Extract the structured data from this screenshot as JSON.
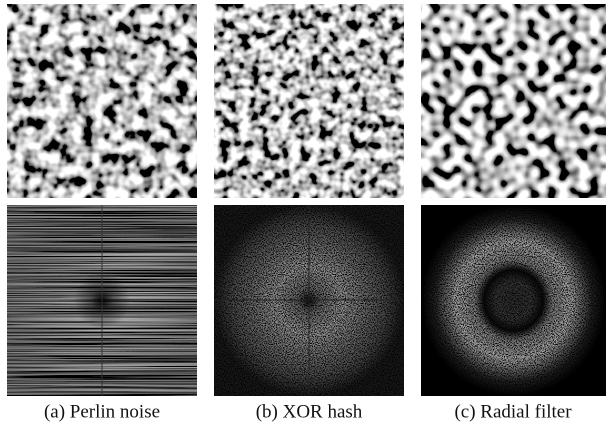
{
  "figure": {
    "captions": [
      "(a) Perlin noise",
      "(b) XOR hash",
      "(c) Radial filter"
    ]
  }
}
